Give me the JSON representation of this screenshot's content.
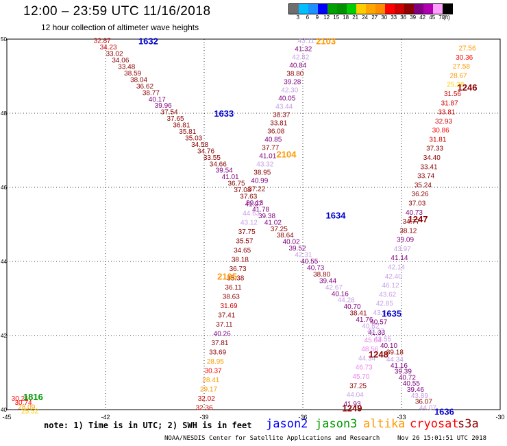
{
  "header": {
    "title": "12:00 – 23:59 UTC 11/16/2018",
    "subtitle": "12 hour collection of altimeter wave heights"
  },
  "legend": {
    "labels": [
      "3",
      "6",
      "9",
      "12",
      "15",
      "18",
      "21",
      "24",
      "27",
      "30",
      "33",
      "36",
      "39",
      "42",
      "45",
      "70",
      "(ft)"
    ],
    "colors": [
      "#6e6e6e",
      "#00bfff",
      "#1e90ff",
      "#0000ff",
      "#00a000",
      "#009000",
      "#00cc00",
      "#ffcc00",
      "#ffa500",
      "#ff8c00",
      "#ff0000",
      "#cc0000",
      "#8b0000",
      "#800080",
      "#b000b0",
      "#ffa0ff",
      "#000000"
    ]
  },
  "footer": {
    "note": "note: 1) Time is in UTC; 2) SWH is in feet",
    "satellites": [
      {
        "name": "jason2",
        "color": "#0000ff"
      },
      {
        "name": "jason3",
        "color": "#009900"
      },
      {
        "name": "altika",
        "color": "#ff9900"
      },
      {
        "name": "cryosat",
        "color": "#ff0000"
      },
      {
        "name": "s3a",
        "color": "#8b0000"
      }
    ],
    "credit": "NOAA/NESDIS Center for Satellite Applications and Research",
    "timestamp": "Nov 26 15:01:51 UTC 2018"
  },
  "chart_data": {
    "type": "scatter",
    "xlim": [
      -45,
      -30
    ],
    "ylim": [
      40,
      50
    ],
    "x_ticks": [
      "-45",
      "-42",
      "-39",
      "-36",
      "-33",
      "-30"
    ],
    "y_ticks": [
      "40",
      "42",
      "44",
      "46",
      "48",
      "50"
    ],
    "grid": true,
    "pass_labels": [
      {
        "text": "1632",
        "lon": -40.7,
        "lat": 49.95,
        "color": "#0000cc"
      },
      {
        "text": "1633",
        "lon": -38.4,
        "lat": 48.0,
        "color": "#0000cc"
      },
      {
        "text": "1634",
        "lon": -35.0,
        "lat": 45.25,
        "color": "#0000cc"
      },
      {
        "text": "1635",
        "lon": -33.3,
        "lat": 42.6,
        "color": "#0000cc"
      },
      {
        "text": "1636",
        "lon": -31.7,
        "lat": 39.95,
        "color": "#0000cc"
      },
      {
        "text": "2103",
        "lon": -35.3,
        "lat": 49.95,
        "color": "#ff9900"
      },
      {
        "text": "2104",
        "lon": -36.5,
        "lat": 46.9,
        "color": "#ff9900"
      },
      {
        "text": "2105",
        "lon": -38.3,
        "lat": 43.6,
        "color": "#ff9900"
      },
      {
        "text": "1246",
        "lon": -31.0,
        "lat": 48.7,
        "color": "#8b0000"
      },
      {
        "text": "1247",
        "lon": -32.5,
        "lat": 45.15,
        "color": "#8b0000"
      },
      {
        "text": "1248",
        "lon": -33.7,
        "lat": 41.5,
        "color": "#8b0000"
      },
      {
        "text": "1249",
        "lon": -34.5,
        "lat": 40.05,
        "color": "#8b0000"
      },
      {
        "text": "1816",
        "lon": -44.2,
        "lat": 40.35,
        "color": "#009900"
      }
    ],
    "tracks": [
      {
        "name": "1632",
        "start": [
          -42.1,
          49.95
        ],
        "end": [
          -33.2,
          41.55
        ],
        "values": [
          "32.87",
          "34.23",
          "33.02",
          "34.06",
          "33.48",
          "38.59",
          "38.04",
          "36.62",
          "38.77",
          "40.17",
          "39.96",
          "37.54",
          "37.65",
          "36.81",
          "35.81",
          "35.03",
          "34.58",
          "34.76",
          "33.55",
          "34.66",
          "39.54",
          "41.01",
          "36.75",
          "37.08",
          "37.63",
          "39.13",
          "41.78",
          "39.38",
          "41.02",
          "37.25",
          "38.64",
          "40.02",
          "39.52",
          "42.31",
          "40.55",
          "40.73",
          "38.80",
          "39.44",
          "42.67",
          "40.16",
          "44.28",
          "40.70",
          "38.41",
          "41.76",
          "40.62",
          "41.33",
          "43.55",
          "40.10",
          "39.18"
        ],
        "colors": [
          "#cc0000",
          "#cc0000",
          "#8b0000",
          "#8b0000",
          "#8b0000",
          "#8b0000",
          "#8b0000",
          "#8b0000",
          "#8b0000",
          "#800080",
          "#800080",
          "#8b0000",
          "#8b0000",
          "#8b0000",
          "#8b0000",
          "#8b0000",
          "#8b0000",
          "#8b0000",
          "#8b0000",
          "#8b0000",
          "#800080",
          "#800080",
          "#8b0000",
          "#8b0000",
          "#8b0000",
          "#800080",
          "#800080",
          "#800080",
          "#800080",
          "#8b0000",
          "#8b0000",
          "#800080",
          "#800080",
          "#c8a0e6",
          "#800080",
          "#800080",
          "#8b0000",
          "#800080",
          "#c8a0e6",
          "#800080",
          "#c8a0e6",
          "#800080",
          "#8b0000",
          "#800080",
          "#c8a0e6",
          "#800080",
          "#c8a0e6",
          "#800080",
          "#8b0000"
        ]
      },
      {
        "name": "1632-tail",
        "start": [
          -33.2,
          41.35
        ],
        "end": [
          -32.2,
          40.05
        ],
        "values": [
          "44.34",
          "41.16",
          "39.39",
          "40.72",
          "40.55",
          "39.46",
          "43.89",
          "36.07",
          "44.07"
        ],
        "colors": [
          "#c8a0e6",
          "#800080",
          "#800080",
          "#800080",
          "#800080",
          "#800080",
          "#c8a0e6",
          "#8b0000",
          "#c8a0e6"
        ]
      },
      {
        "name": "2103",
        "start": [
          -35.9,
          49.95
        ],
        "end": [
          -37.4,
          45.95
        ],
        "values": [
          "43.11",
          "41.32",
          "42.82",
          "40.84",
          "38.80",
          "39.28",
          "42.30",
          "40.05",
          "43.44",
          "38.37",
          "33.81",
          "36.08",
          "40.85",
          "37.77",
          "41.01",
          "43.32",
          "38.95",
          "40.99",
          "37.22"
        ],
        "colors": [
          "#c8a0e6",
          "#800080",
          "#c8a0e6",
          "#800080",
          "#8b0000",
          "#800080",
          "#c8a0e6",
          "#800080",
          "#c8a0e6",
          "#8b0000",
          "#8b0000",
          "#8b0000",
          "#800080",
          "#8b0000",
          "#800080",
          "#c8a0e6",
          "#8b0000",
          "#800080",
          "#8b0000"
        ]
      },
      {
        "name": "2105",
        "start": [
          -37.5,
          45.55
        ],
        "end": [
          -39.0,
          40.05
        ],
        "values": [
          "41.97",
          "44.63",
          "43.12",
          "37.75",
          "35.57",
          "34.65",
          "38.18",
          "36.73",
          "35.38",
          "36.11",
          "38.63",
          "31.69",
          "37.41",
          "37.11",
          "40.26",
          "37.81",
          "33.69",
          "28.95",
          "30.37",
          "28.41",
          "29.17",
          "32.02",
          "32.36"
        ],
        "colors": [
          "#800080",
          "#c8a0e6",
          "#c8a0e6",
          "#8b0000",
          "#8b0000",
          "#8b0000",
          "#8b0000",
          "#8b0000",
          "#8b0000",
          "#8b0000",
          "#8b0000",
          "#cc0000",
          "#8b0000",
          "#8b0000",
          "#800080",
          "#8b0000",
          "#8b0000",
          "#ff9900",
          "#ff0000",
          "#ff9900",
          "#ff9900",
          "#cc0000",
          "#cc0000"
        ]
      },
      {
        "name": "1246",
        "start": [
          -31.0,
          49.75
        ],
        "end": [
          -34.5,
          40.15
        ],
        "values": [
          "27.56",
          "30.36",
          "27.58",
          "28.67",
          "25.28",
          "31.56",
          "31.87",
          "33.81",
          "32.93",
          "30.86",
          "31.81",
          "37.33",
          "34.40",
          "33.41",
          "33.74",
          "35.24",
          "36.26",
          "37.03",
          "40.73",
          "34.77",
          "38.12",
          "39.09",
          "43.97",
          "41.14",
          "42.14",
          "42.40",
          "46.12",
          "43.62",
          "42.85",
          "43.84",
          "40.57",
          "43.33",
          "45.04",
          "48.56",
          "44.34",
          "46.73",
          "45.70",
          "37.25",
          "44.04",
          "41.93"
        ],
        "colors": [
          "#ff9900",
          "#ff0000",
          "#ff9900",
          "#ff9900",
          "#ffcc00",
          "#cc0000",
          "#cc0000",
          "#cc0000",
          "#cc0000",
          "#ff0000",
          "#cc0000",
          "#8b0000",
          "#8b0000",
          "#8b0000",
          "#8b0000",
          "#8b0000",
          "#8b0000",
          "#8b0000",
          "#800080",
          "#8b0000",
          "#8b0000",
          "#800080",
          "#c8a0e6",
          "#800080",
          "#c8a0e6",
          "#c8a0e6",
          "#c8a0e6",
          "#c8a0e6",
          "#c8a0e6",
          "#c8a0e6",
          "#800080",
          "#c8a0e6",
          "#ee82ee",
          "#ee82ee",
          "#c8a0e6",
          "#ee82ee",
          "#ee82ee",
          "#8b0000",
          "#c8a0e6",
          "#800080"
        ]
      },
      {
        "name": "1816",
        "start": [
          -44.6,
          40.3
        ],
        "end": [
          -44.3,
          39.95
        ],
        "values": [
          "30.21",
          "30.74",
          "28.09",
          "25.52"
        ],
        "colors": [
          "#ff0000",
          "#ff0000",
          "#ff9900",
          "#ffcc00"
        ]
      }
    ]
  }
}
